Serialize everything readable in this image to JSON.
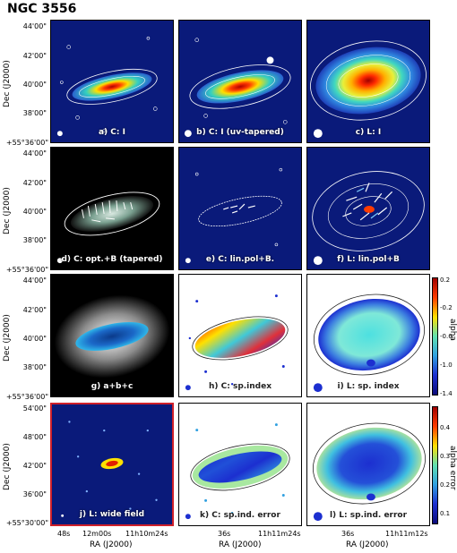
{
  "title": "NGC 3556",
  "axes": {
    "dec_title": "Dec (J2000)",
    "ra_title": "RA (J2000)",
    "dec_ticks_upper": [
      "44'00\"",
      "42'00\"",
      "40'00\"",
      "38'00\"",
      "+55°36'00\""
    ],
    "dec_ticks_lower": [
      "54'00\"",
      "48'00\"",
      "42'00\"",
      "36'00\"",
      "+55°30'00\""
    ],
    "ra_ticks_col1": [
      "48s",
      "12m00s",
      "11h10m24s"
    ],
    "ra_ticks_col2": [
      "36s",
      "11h11m24s"
    ],
    "ra_ticks_col3": [
      "36s",
      "11h11m12s"
    ]
  },
  "panels": {
    "a": "a) C: I",
    "b": "b) C: I (uv-tapered)",
    "c": "c) L: I",
    "d": "d) C: opt.+B (tapered)",
    "e": "e) C: lin.pol+B.",
    "f": "f) L: lin.pol+B",
    "g": "g) a+b+c",
    "h": "h) C: sp.index",
    "i": "i) L: sp. index",
    "j": "j) L: wide field",
    "k": "k) C: sp.ind. error",
    "l": "l) L: sp.ind. error"
  },
  "colorbars": {
    "alpha": {
      "title": "alpha",
      "ticks": [
        "0.2",
        "-0.2",
        "-0.6",
        "-1.0",
        "-1.4"
      ]
    },
    "alpha_error": {
      "title": "alpha error",
      "ticks": [
        "0.4",
        "0.3",
        "0.2",
        "0.1"
      ]
    }
  },
  "colors": {
    "sky_blue": "#0a1a7a",
    "accent_red": "#d0202a"
  }
}
